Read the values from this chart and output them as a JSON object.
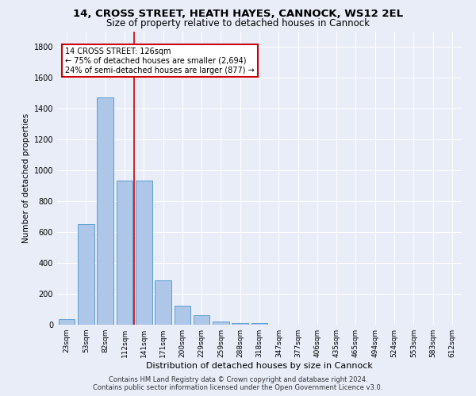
{
  "title": "14, CROSS STREET, HEATH HAYES, CANNOCK, WS12 2EL",
  "subtitle": "Size of property relative to detached houses in Cannock",
  "xlabel": "Distribution of detached houses by size in Cannock",
  "ylabel": "Number of detached properties",
  "footer_line1": "Contains HM Land Registry data © Crown copyright and database right 2024.",
  "footer_line2": "Contains public sector information licensed under the Open Government Licence v3.0.",
  "bin_labels": [
    "23sqm",
    "53sqm",
    "82sqm",
    "112sqm",
    "141sqm",
    "171sqm",
    "200sqm",
    "229sqm",
    "259sqm",
    "288sqm",
    "318sqm",
    "347sqm",
    "377sqm",
    "406sqm",
    "435sqm",
    "465sqm",
    "494sqm",
    "524sqm",
    "553sqm",
    "583sqm",
    "612sqm"
  ],
  "bar_values": [
    38,
    650,
    1475,
    935,
    935,
    290,
    125,
    60,
    22,
    10,
    10,
    0,
    0,
    0,
    0,
    0,
    0,
    0,
    0,
    0,
    0
  ],
  "bar_color": "#aec6e8",
  "bar_edge_color": "#5a9fd4",
  "red_line_x": 3.5,
  "annotation_line1": "14 CROSS STREET: 126sqm",
  "annotation_line2": "← 75% of detached houses are smaller (2,694)",
  "annotation_line3": "24% of semi-detached houses are larger (877) →",
  "annotation_box_color": "#ffffff",
  "annotation_box_edge_color": "#cc0000",
  "red_line_color": "#cc0000",
  "ylim": [
    0,
    1900
  ],
  "yticks": [
    0,
    200,
    400,
    600,
    800,
    1000,
    1200,
    1400,
    1600,
    1800
  ],
  "bg_color": "#e8edf8",
  "grid_color": "#ffffff",
  "title_fontsize": 9.5,
  "subtitle_fontsize": 8.5,
  "ylabel_fontsize": 7.5,
  "xlabel_fontsize": 8,
  "tick_fontsize": 6.5,
  "ytick_fontsize": 7,
  "annotation_fontsize": 7,
  "footer_fontsize": 6
}
